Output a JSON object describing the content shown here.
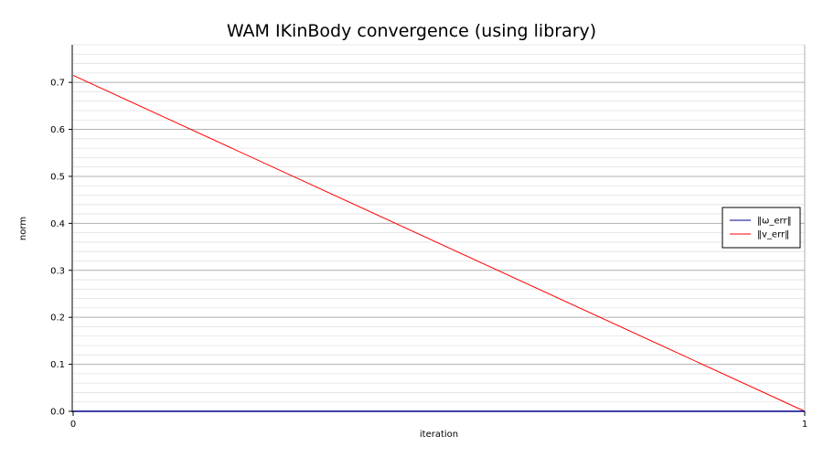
{
  "chart_data": {
    "type": "line",
    "title": "WAM IKinBody convergence (using library)",
    "xlabel": "iteration",
    "ylabel": "norm",
    "xlim": [
      0,
      1
    ],
    "ylim": [
      0,
      0.78
    ],
    "xticks": [
      "0",
      "1"
    ],
    "yticks": [
      "0.0",
      "0.1",
      "0.2",
      "0.3",
      "0.4",
      "0.5",
      "0.6",
      "0.7"
    ],
    "grid": true,
    "legend_position": "right",
    "series": [
      {
        "name": "‖ω_err‖",
        "color": "#00008b",
        "x": [
          0,
          1
        ],
        "y": [
          0.0,
          0.0
        ]
      },
      {
        "name": "‖v_err‖",
        "color": "#ff0000",
        "x": [
          0,
          1
        ],
        "y": [
          0.715,
          0.0
        ]
      }
    ]
  }
}
